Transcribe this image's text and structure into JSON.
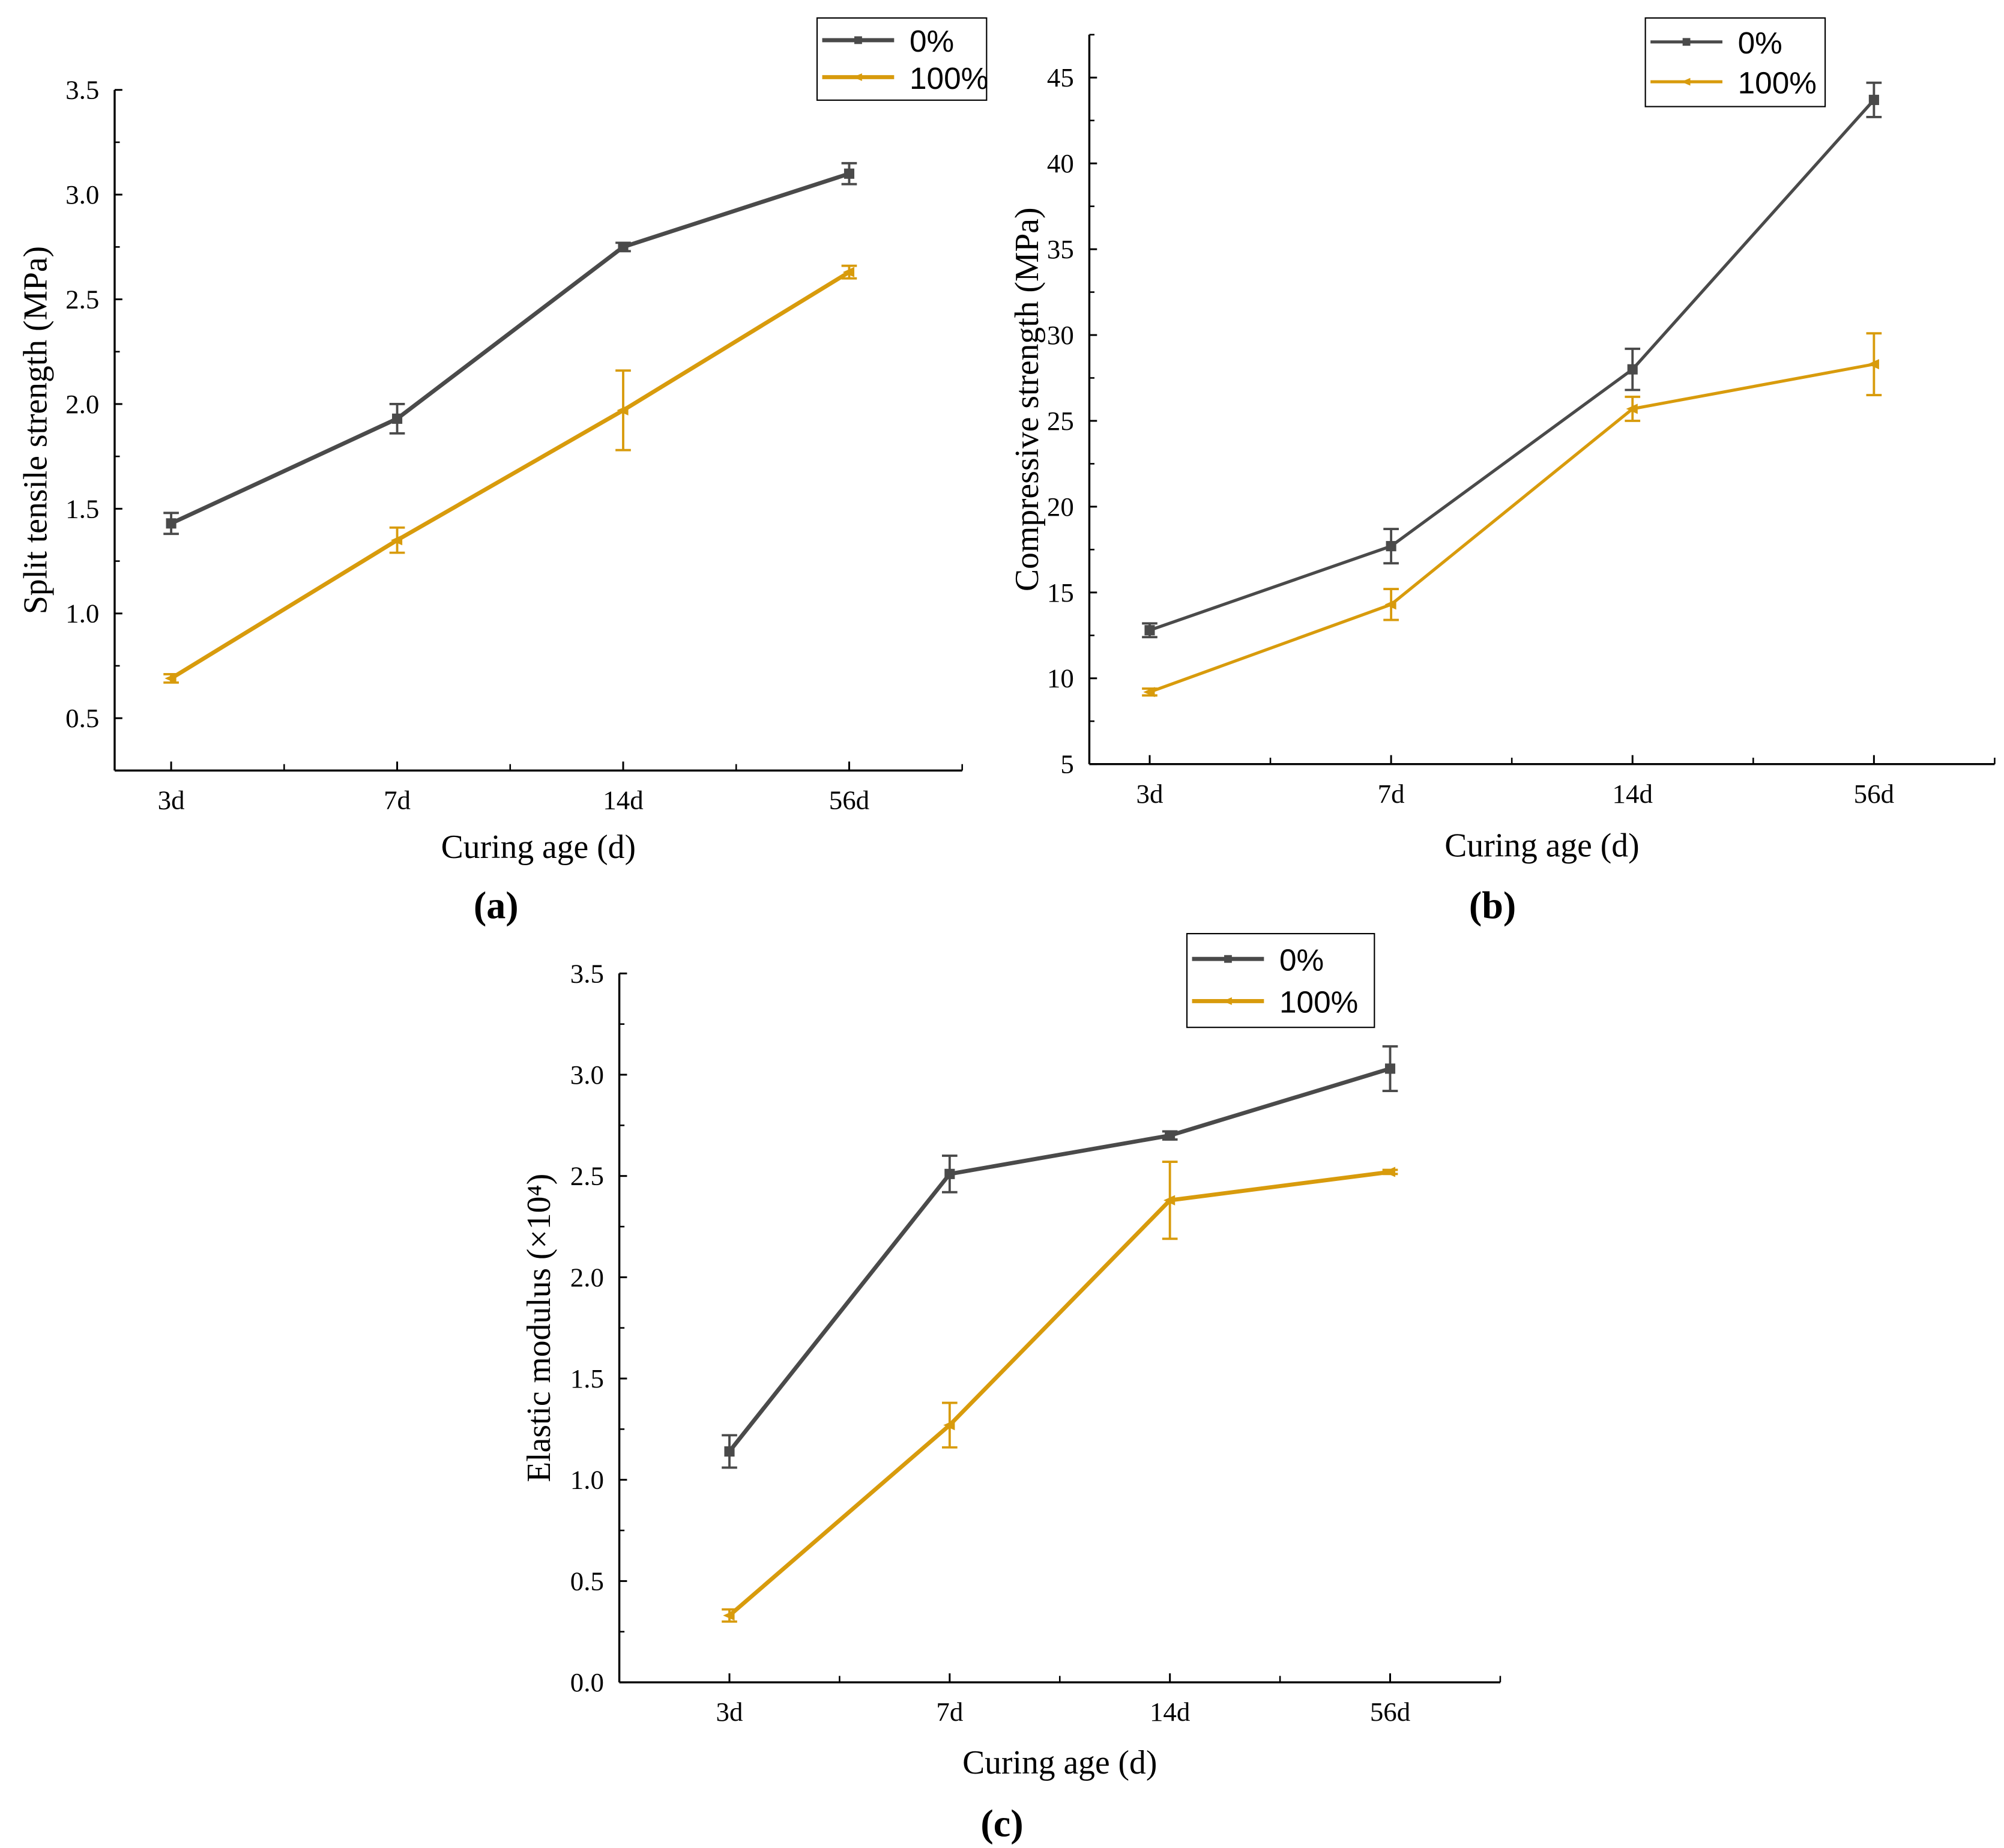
{
  "colors": {
    "series_0": "#4a4a4a",
    "series_100": "#d89b0c"
  },
  "chart_data": [
    {
      "type": "line",
      "caption": "(a)",
      "xlabel": "Curing age (d)",
      "ylabel": "Split tensile strength (MPa)",
      "categories": [
        "3d",
        "7d",
        "14d",
        "56d"
      ],
      "yticks": [
        "0.5",
        "1.0",
        "1.5",
        "2.0",
        "2.5",
        "3.0",
        "3.5"
      ],
      "ylim": [
        0.25,
        3.5
      ],
      "xlim": [
        -0.25,
        3.5
      ],
      "legend": "top-right",
      "series": [
        {
          "name": "0%",
          "marker": "square",
          "values": [
            1.43,
            1.93,
            2.75,
            3.1
          ],
          "errors": [
            0.05,
            0.07,
            0.02,
            0.05
          ]
        },
        {
          "name": "100%",
          "marker": "left-triangle",
          "values": [
            0.69,
            1.35,
            1.97,
            2.63
          ],
          "errors": [
            0.02,
            0.06,
            0.19,
            0.03
          ]
        }
      ]
    },
    {
      "type": "line",
      "caption": "(b)",
      "xlabel": "Curing age (d)",
      "ylabel": "Compressive strength (MPa)",
      "categories": [
        "3d",
        "7d",
        "14d",
        "56d"
      ],
      "yticks": [
        "5",
        "10",
        "15",
        "20",
        "25",
        "30",
        "35",
        "40",
        "45"
      ],
      "ylim": [
        5,
        47.5
      ],
      "xlim": [
        -0.25,
        3.5
      ],
      "legend": "top-right",
      "series": [
        {
          "name": "0%",
          "marker": "square",
          "values": [
            12.8,
            17.7,
            28.0,
            43.7
          ],
          "errors": [
            0.4,
            1.0,
            1.2,
            1.0
          ]
        },
        {
          "name": "100%",
          "marker": "left-triangle",
          "values": [
            9.2,
            14.3,
            25.7,
            28.3
          ],
          "errors": [
            0.2,
            0.9,
            0.7,
            1.8
          ]
        }
      ]
    },
    {
      "type": "line",
      "caption": "(c)",
      "xlabel": "Curing age (d)",
      "ylabel": "Elastic modulus (×10⁴)",
      "categories": [
        "3d",
        "7d",
        "14d",
        "56d"
      ],
      "yticks": [
        "0.0",
        "0.5",
        "1.0",
        "1.5",
        "2.0",
        "2.5",
        "3.0",
        "3.5"
      ],
      "ylim": [
        0,
        3.5
      ],
      "xlim": [
        -0.5,
        3.5
      ],
      "legend": "top-right",
      "series": [
        {
          "name": "0%",
          "marker": "square",
          "values": [
            1.14,
            2.51,
            2.7,
            3.03
          ],
          "errors": [
            0.08,
            0.09,
            0.02,
            0.11
          ]
        },
        {
          "name": "100%",
          "marker": "left-triangle",
          "values": [
            0.33,
            1.27,
            2.38,
            2.52
          ],
          "errors": [
            0.03,
            0.11,
            0.19,
            0.01
          ]
        }
      ]
    }
  ]
}
